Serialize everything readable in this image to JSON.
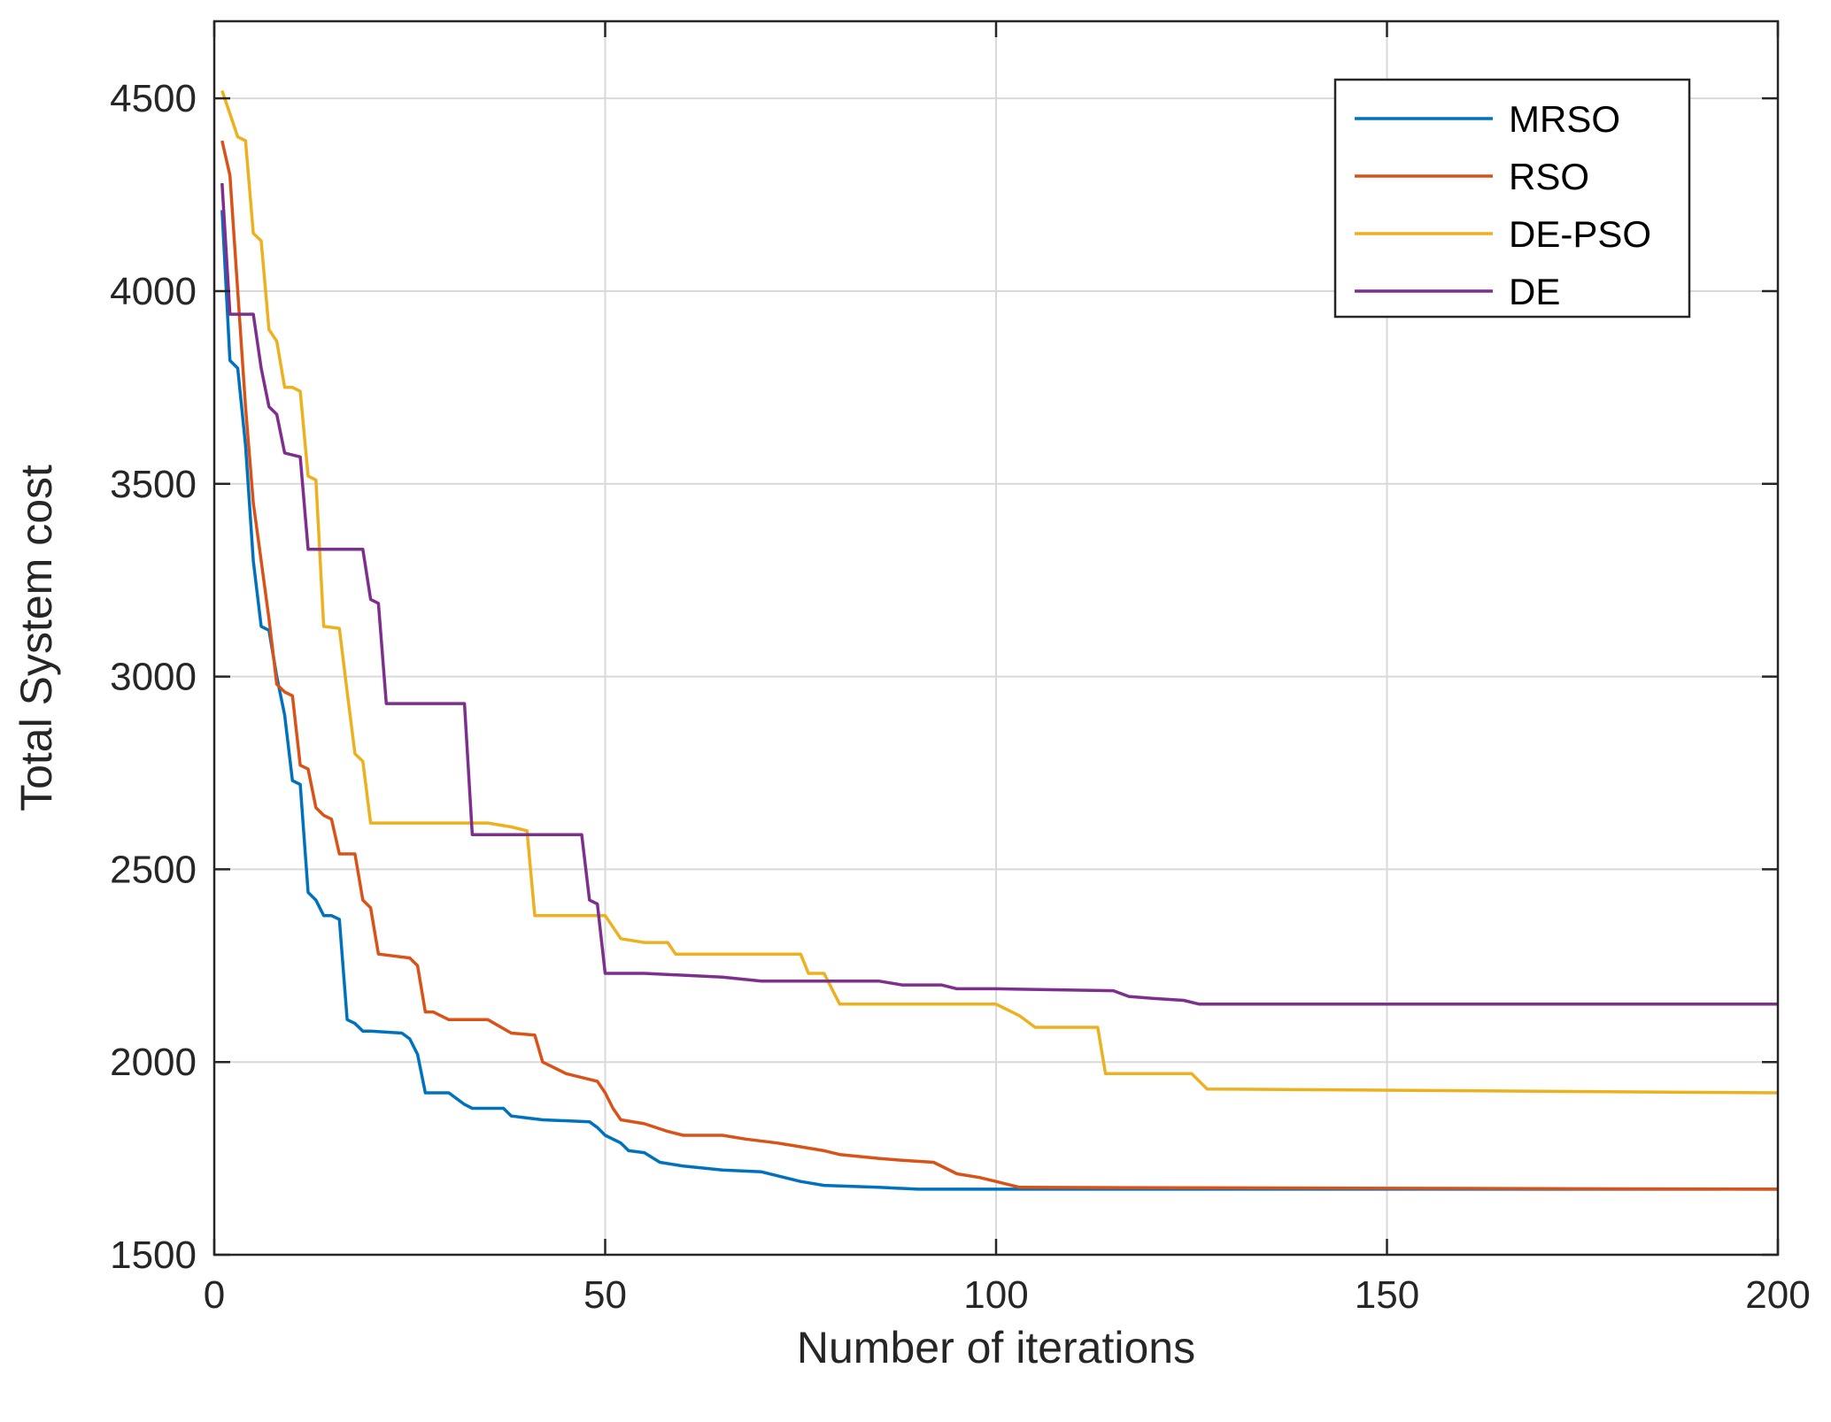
{
  "chart_data": {
    "type": "line",
    "title": "",
    "xlabel": "Number of iterations",
    "ylabel": "Total System cost",
    "xlim": [
      0,
      200
    ],
    "ylim": [
      1500,
      4700
    ],
    "xticks": [
      0,
      50,
      100,
      150,
      200
    ],
    "yticks": [
      1500,
      2000,
      2500,
      3000,
      3500,
      4000,
      4500
    ],
    "grid": true,
    "legend_position": "top-right",
    "series": [
      {
        "name": "MRSO",
        "color": "#0072BD",
        "points": [
          [
            1,
            4210
          ],
          [
            2,
            3820
          ],
          [
            3,
            3800
          ],
          [
            4,
            3600
          ],
          [
            5,
            3300
          ],
          [
            6,
            3130
          ],
          [
            7,
            3120
          ],
          [
            8,
            3000
          ],
          [
            9,
            2900
          ],
          [
            10,
            2730
          ],
          [
            11,
            2720
          ],
          [
            12,
            2440
          ],
          [
            13,
            2420
          ],
          [
            14,
            2380
          ],
          [
            15,
            2380
          ],
          [
            16,
            2370
          ],
          [
            17,
            2110
          ],
          [
            18,
            2100
          ],
          [
            19,
            2080
          ],
          [
            20,
            2080
          ],
          [
            24,
            2075
          ],
          [
            25,
            2060
          ],
          [
            26,
            2020
          ],
          [
            27,
            1920
          ],
          [
            30,
            1920
          ],
          [
            32,
            1890
          ],
          [
            33,
            1880
          ],
          [
            35,
            1880
          ],
          [
            37,
            1880
          ],
          [
            38,
            1860
          ],
          [
            40,
            1855
          ],
          [
            42,
            1850
          ],
          [
            48,
            1845
          ],
          [
            49,
            1830
          ],
          [
            50,
            1810
          ],
          [
            52,
            1790
          ],
          [
            53,
            1770
          ],
          [
            55,
            1765
          ],
          [
            57,
            1740
          ],
          [
            60,
            1730
          ],
          [
            65,
            1720
          ],
          [
            70,
            1715
          ],
          [
            75,
            1690
          ],
          [
            78,
            1680
          ],
          [
            85,
            1675
          ],
          [
            90,
            1670
          ],
          [
            200,
            1670
          ]
        ]
      },
      {
        "name": "RSO",
        "color": "#D95319",
        "points": [
          [
            1,
            4390
          ],
          [
            2,
            4300
          ],
          [
            3,
            4000
          ],
          [
            4,
            3700
          ],
          [
            5,
            3450
          ],
          [
            6,
            3300
          ],
          [
            7,
            3150
          ],
          [
            8,
            2980
          ],
          [
            9,
            2960
          ],
          [
            10,
            2950
          ],
          [
            11,
            2770
          ],
          [
            12,
            2760
          ],
          [
            13,
            2660
          ],
          [
            14,
            2640
          ],
          [
            15,
            2630
          ],
          [
            16,
            2540
          ],
          [
            18,
            2540
          ],
          [
            19,
            2420
          ],
          [
            20,
            2400
          ],
          [
            21,
            2280
          ],
          [
            25,
            2270
          ],
          [
            26,
            2250
          ],
          [
            27,
            2130
          ],
          [
            28,
            2130
          ],
          [
            30,
            2110
          ],
          [
            35,
            2110
          ],
          [
            38,
            2075
          ],
          [
            41,
            2070
          ],
          [
            42,
            2000
          ],
          [
            45,
            1970
          ],
          [
            48,
            1955
          ],
          [
            49,
            1950
          ],
          [
            50,
            1920
          ],
          [
            51,
            1880
          ],
          [
            52,
            1850
          ],
          [
            55,
            1840
          ],
          [
            58,
            1820
          ],
          [
            60,
            1810
          ],
          [
            65,
            1810
          ],
          [
            68,
            1800
          ],
          [
            72,
            1790
          ],
          [
            75,
            1780
          ],
          [
            78,
            1770
          ],
          [
            80,
            1760
          ],
          [
            85,
            1750
          ],
          [
            88,
            1745
          ],
          [
            92,
            1740
          ],
          [
            95,
            1710
          ],
          [
            98,
            1700
          ],
          [
            100,
            1690
          ],
          [
            103,
            1675
          ],
          [
            200,
            1670
          ]
        ]
      },
      {
        "name": "DE-PSO",
        "color": "#EDB120",
        "points": [
          [
            1,
            4520
          ],
          [
            2,
            4460
          ],
          [
            3,
            4400
          ],
          [
            4,
            4390
          ],
          [
            5,
            4150
          ],
          [
            6,
            4130
          ],
          [
            7,
            3900
          ],
          [
            8,
            3870
          ],
          [
            9,
            3750
          ],
          [
            10,
            3750
          ],
          [
            11,
            3740
          ],
          [
            12,
            3520
          ],
          [
            13,
            3510
          ],
          [
            14,
            3130
          ],
          [
            16,
            3125
          ],
          [
            17,
            2960
          ],
          [
            18,
            2800
          ],
          [
            19,
            2780
          ],
          [
            20,
            2620
          ],
          [
            35,
            2620
          ],
          [
            38,
            2610
          ],
          [
            40,
            2600
          ],
          [
            41,
            2380
          ],
          [
            48,
            2380
          ],
          [
            50,
            2380
          ],
          [
            52,
            2320
          ],
          [
            55,
            2310
          ],
          [
            58,
            2310
          ],
          [
            59,
            2280
          ],
          [
            75,
            2280
          ],
          [
            76,
            2230
          ],
          [
            78,
            2230
          ],
          [
            80,
            2150
          ],
          [
            100,
            2150
          ],
          [
            103,
            2120
          ],
          [
            105,
            2090
          ],
          [
            113,
            2090
          ],
          [
            114,
            1970
          ],
          [
            125,
            1970
          ],
          [
            127,
            1930
          ],
          [
            200,
            1920
          ]
        ]
      },
      {
        "name": "DE",
        "color": "#7E2F8E",
        "points": [
          [
            1,
            4280
          ],
          [
            2,
            3940
          ],
          [
            5,
            3940
          ],
          [
            6,
            3800
          ],
          [
            7,
            3700
          ],
          [
            8,
            3680
          ],
          [
            9,
            3580
          ],
          [
            11,
            3570
          ],
          [
            12,
            3330
          ],
          [
            19,
            3330
          ],
          [
            20,
            3200
          ],
          [
            21,
            3190
          ],
          [
            22,
            2930
          ],
          [
            32,
            2930
          ],
          [
            33,
            2590
          ],
          [
            47,
            2590
          ],
          [
            48,
            2420
          ],
          [
            49,
            2410
          ],
          [
            50,
            2230
          ],
          [
            55,
            2230
          ],
          [
            65,
            2220
          ],
          [
            70,
            2210
          ],
          [
            75,
            2210
          ],
          [
            85,
            2210
          ],
          [
            88,
            2200
          ],
          [
            93,
            2200
          ],
          [
            95,
            2190
          ],
          [
            100,
            2190
          ],
          [
            115,
            2185
          ],
          [
            117,
            2170
          ],
          [
            120,
            2165
          ],
          [
            124,
            2160
          ],
          [
            126,
            2150
          ],
          [
            200,
            2150
          ]
        ]
      }
    ]
  }
}
